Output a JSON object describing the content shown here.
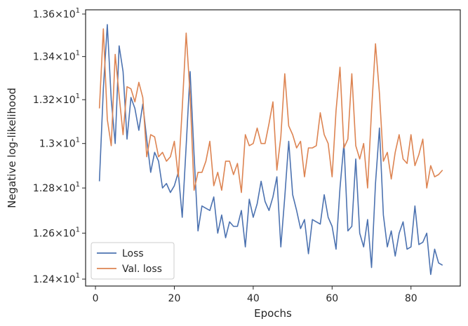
{
  "chart_data": {
    "type": "line",
    "title": "",
    "xlabel": "Epochs",
    "ylabel": "Negative log-likelihood",
    "xlim": [
      -2.5,
      92.5
    ],
    "ylim": [
      12.37,
      13.62
    ],
    "yscale": "log",
    "grid": false,
    "legend_position": "lower-left",
    "xticks": [
      {
        "value": 0,
        "label": "0"
      },
      {
        "value": 20,
        "label": "20"
      },
      {
        "value": 40,
        "label": "40"
      },
      {
        "value": 60,
        "label": "60"
      },
      {
        "value": 80,
        "label": "80"
      }
    ],
    "yticks": [
      {
        "value": 12.4,
        "base": "1.24",
        "exp": "1"
      },
      {
        "value": 12.6,
        "base": "1.26",
        "exp": "1"
      },
      {
        "value": 12.8,
        "base": "1.28",
        "exp": "1"
      },
      {
        "value": 13.0,
        "base": "1.3",
        "exp": "1"
      },
      {
        "value": 13.2,
        "base": "1.32",
        "exp": "1"
      },
      {
        "value": 13.4,
        "base": "1.34",
        "exp": "1"
      },
      {
        "value": 13.6,
        "base": "1.36",
        "exp": "1"
      }
    ],
    "x": [
      1,
      2,
      3,
      4,
      5,
      6,
      7,
      8,
      9,
      10,
      11,
      12,
      13,
      14,
      15,
      16,
      17,
      18,
      19,
      20,
      21,
      22,
      23,
      24,
      25,
      26,
      27,
      28,
      29,
      30,
      31,
      32,
      33,
      34,
      35,
      36,
      37,
      38,
      39,
      40,
      41,
      42,
      43,
      44,
      45,
      46,
      47,
      48,
      49,
      50,
      51,
      52,
      53,
      54,
      55,
      56,
      57,
      58,
      59,
      60,
      61,
      62,
      63,
      64,
      65,
      66,
      67,
      68,
      69,
      70,
      71,
      72,
      73,
      74,
      75,
      76,
      77,
      78,
      79,
      80,
      81,
      82,
      83,
      84,
      85,
      86,
      87,
      88
    ],
    "series": [
      {
        "name": "Loss",
        "color": "#4c72b0",
        "values": [
          12.83,
          13.25,
          13.55,
          13.2,
          13.0,
          13.45,
          13.33,
          13.02,
          13.21,
          13.16,
          13.06,
          13.18,
          13.02,
          12.87,
          12.96,
          12.92,
          12.8,
          12.82,
          12.78,
          12.81,
          12.87,
          12.67,
          12.99,
          13.33,
          12.95,
          12.61,
          12.72,
          12.71,
          12.7,
          12.76,
          12.6,
          12.68,
          12.58,
          12.65,
          12.63,
          12.63,
          12.7,
          12.54,
          12.75,
          12.67,
          12.73,
          12.83,
          12.74,
          12.7,
          12.76,
          12.85,
          12.54,
          12.76,
          13.01,
          12.77,
          12.7,
          12.62,
          12.66,
          12.51,
          12.66,
          12.65,
          12.64,
          12.77,
          12.67,
          12.63,
          12.53,
          12.8,
          13.0,
          12.61,
          12.63,
          12.93,
          12.6,
          12.54,
          12.66,
          12.45,
          12.82,
          13.07,
          12.68,
          12.54,
          12.61,
          12.5,
          12.6,
          12.65,
          12.53,
          12.54,
          12.72,
          12.55,
          12.56,
          12.6,
          12.42,
          12.53,
          12.47,
          12.46
        ]
      },
      {
        "name": "Val. loss",
        "color": "#dd8452",
        "values": [
          13.16,
          13.53,
          13.11,
          12.99,
          13.41,
          13.22,
          13.04,
          13.26,
          13.25,
          13.19,
          13.28,
          13.21,
          12.94,
          13.04,
          13.03,
          12.94,
          12.96,
          12.92,
          12.94,
          13.01,
          12.85,
          13.16,
          13.51,
          13.22,
          12.79,
          12.87,
          12.87,
          12.92,
          13.01,
          12.81,
          12.87,
          12.79,
          12.92,
          12.92,
          12.86,
          12.91,
          12.78,
          13.04,
          12.99,
          13.0,
          13.07,
          13.0,
          13.0,
          13.09,
          13.19,
          12.88,
          13.03,
          13.32,
          13.08,
          13.04,
          12.98,
          13.01,
          12.85,
          12.98,
          12.98,
          12.99,
          13.14,
          13.04,
          13.0,
          12.85,
          13.15,
          13.35,
          12.98,
          13.02,
          13.32,
          12.99,
          12.93,
          13.0,
          12.8,
          13.15,
          13.46,
          13.23,
          12.92,
          12.96,
          12.84,
          12.96,
          13.04,
          12.93,
          12.91,
          13.04,
          12.9,
          12.95,
          13.02,
          12.8,
          12.9,
          12.85,
          12.86,
          12.88
        ]
      }
    ]
  }
}
